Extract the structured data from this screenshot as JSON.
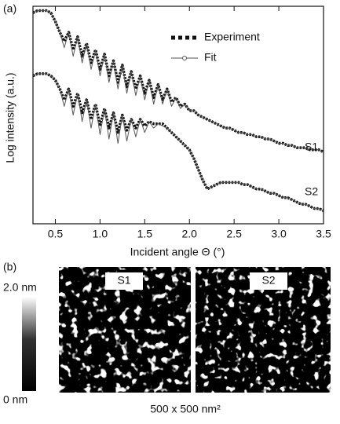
{
  "chart_data": {
    "type": "line",
    "panel_label": "(a)",
    "x_label": "Incident angle Θ (°)",
    "y_label": "Log intensity (a.u.)",
    "xlim": [
      0.25,
      3.5
    ],
    "ylim": [
      0,
      100
    ],
    "xticks": [
      0.5,
      {
        "value": 1,
        "label": "1.0"
      },
      1.5,
      {
        "value": 2,
        "label": "2.0"
      },
      2.5,
      {
        "value": 3,
        "label": "3.0"
      },
      3.5
    ],
    "x": [
      0.25,
      0.3,
      0.35,
      0.4,
      0.45,
      0.5,
      0.55,
      0.6,
      0.65,
      0.7,
      0.75,
      0.8,
      0.85,
      0.9,
      0.95,
      1.0,
      1.05,
      1.1,
      1.15,
      1.2,
      1.25,
      1.3,
      1.35,
      1.4,
      1.45,
      1.5,
      1.55,
      1.6,
      1.65,
      1.7,
      1.75,
      1.8,
      1.85,
      1.9,
      1.95,
      2.0,
      2.05,
      2.1,
      2.15,
      2.2,
      2.25,
      2.3,
      2.35,
      2.4,
      2.45,
      2.5,
      2.55,
      2.6,
      2.65,
      2.7,
      2.75,
      2.8,
      2.85,
      2.9,
      2.95,
      3.0,
      3.05,
      3.1,
      3.15,
      3.2,
      3.25,
      3.3,
      3.35,
      3.4,
      3.45,
      3.5
    ],
    "series": [
      {
        "name": "Experiment",
        "sample": "S1",
        "color": "#111111",
        "values": [
          97,
          98,
          98,
          98,
          97,
          93,
          88,
          84,
          88,
          80,
          86,
          77,
          83,
          74,
          80,
          71,
          78,
          68,
          75,
          65,
          73,
          63,
          70,
          62,
          68,
          60,
          66,
          58,
          64,
          57,
          62,
          56,
          58,
          54,
          55,
          52,
          52,
          50,
          49,
          48,
          47,
          46,
          45,
          44,
          44,
          43,
          42,
          42,
          41,
          41,
          40,
          40,
          39,
          39,
          38,
          37,
          37,
          36,
          36,
          35,
          35,
          35,
          34,
          34,
          34,
          33
        ]
      },
      {
        "name": "Fit",
        "sample": "S1",
        "color": "#555555",
        "values": [
          97,
          98,
          98,
          98,
          97,
          93,
          88,
          81,
          88,
          77,
          86,
          74,
          83,
          71,
          80,
          68,
          78,
          65,
          75,
          62,
          73,
          60,
          70,
          59,
          68,
          57,
          66,
          55,
          64,
          55,
          62,
          54,
          58,
          53,
          55,
          52,
          52,
          50,
          49,
          48,
          47,
          46,
          45,
          44,
          44,
          43,
          42,
          42,
          41,
          41,
          40,
          40,
          39,
          39,
          38,
          37,
          37,
          36,
          36,
          35,
          35,
          35,
          34,
          34,
          34,
          33
        ]
      },
      {
        "name": "Experiment",
        "sample": "S2",
        "color": "#111111",
        "values": [
          68,
          69,
          69,
          69,
          68,
          66,
          62,
          57,
          62,
          54,
          60,
          51,
          57,
          48,
          55,
          45,
          53,
          44,
          51,
          42,
          50,
          43,
          48,
          44,
          48,
          45,
          47,
          46,
          46,
          46,
          44,
          42,
          40,
          38,
          36,
          34,
          30,
          25,
          20,
          16,
          17,
          18,
          19,
          19,
          19,
          19,
          19,
          18,
          18,
          17,
          16,
          16,
          15,
          14,
          14,
          13,
          12,
          12,
          11,
          10,
          9,
          9,
          8,
          7,
          7,
          6
        ]
      },
      {
        "name": "Fit",
        "sample": "S2",
        "color": "#555555",
        "values": [
          68,
          69,
          69,
          69,
          68,
          66,
          62,
          54,
          62,
          50,
          60,
          47,
          57,
          44,
          55,
          41,
          53,
          39,
          51,
          37,
          50,
          38,
          48,
          40,
          48,
          42,
          47,
          44,
          46,
          45,
          44,
          42,
          40,
          38,
          36,
          34,
          30,
          25,
          20,
          16,
          17,
          18,
          19,
          19,
          19,
          19,
          19,
          18,
          18,
          17,
          16,
          16,
          15,
          14,
          14,
          13,
          12,
          12,
          11,
          10,
          9,
          9,
          8,
          7,
          7,
          6
        ]
      }
    ]
  },
  "afm": {
    "panel_label": "(b)",
    "scale_max": "2.0 nm",
    "scale_min": "0 nm",
    "images": [
      "S1",
      "S2"
    ],
    "caption": "500 x 500 nm²"
  }
}
